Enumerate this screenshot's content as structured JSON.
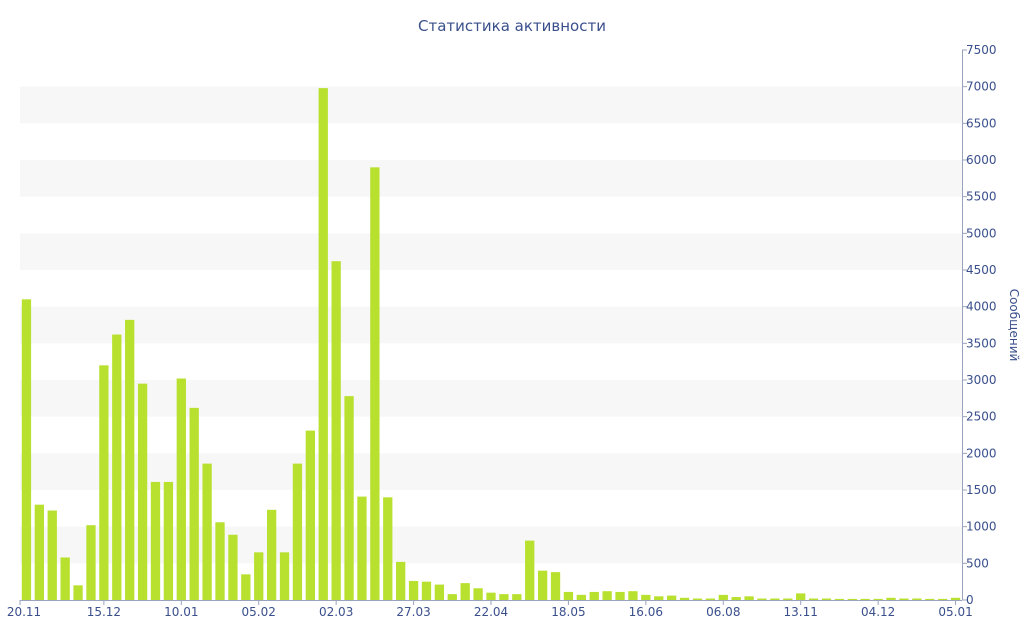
{
  "chart_data": {
    "type": "bar",
    "title": "Статистика активности",
    "ylabel": "Сообщений",
    "xlabel": "",
    "ylim": [
      0,
      7500
    ],
    "y_ticks": [
      0,
      500,
      1000,
      1500,
      2000,
      2500,
      3000,
      3500,
      4000,
      4500,
      5000,
      5500,
      6000,
      6500,
      7000,
      7500
    ],
    "y_axis_position": "right",
    "grid": "alternating horizontal bands",
    "legend": "none",
    "bar_color": "#b8e02e",
    "band_color": "#f7f7f7",
    "text_color": "#3a4f8c",
    "x_tick_labels": [
      {
        "index": 0,
        "label": "20.11"
      },
      {
        "index": 6,
        "label": "15.12"
      },
      {
        "index": 12,
        "label": "10.01"
      },
      {
        "index": 18,
        "label": "05.02"
      },
      {
        "index": 24,
        "label": "02.03"
      },
      {
        "index": 30,
        "label": "27.03"
      },
      {
        "index": 36,
        "label": "22.04"
      },
      {
        "index": 42,
        "label": "18.05"
      },
      {
        "index": 48,
        "label": "16.06"
      },
      {
        "index": 54,
        "label": "06.08"
      },
      {
        "index": 60,
        "label": "13.11"
      },
      {
        "index": 66,
        "label": "04.12"
      },
      {
        "index": 72,
        "label": "05.01"
      }
    ],
    "values": [
      4100,
      1300,
      1220,
      580,
      200,
      1020,
      3200,
      3620,
      3820,
      2950,
      1610,
      1610,
      3020,
      2620,
      1860,
      1060,
      890,
      350,
      650,
      1230,
      650,
      1860,
      2310,
      6980,
      4620,
      2780,
      1410,
      5900,
      1400,
      520,
      260,
      250,
      210,
      80,
      230,
      160,
      100,
      80,
      80,
      810,
      400,
      380,
      110,
      70,
      110,
      120,
      110,
      120,
      70,
      50,
      60,
      30,
      20,
      20,
      70,
      40,
      50,
      20,
      20,
      20,
      90,
      20,
      20,
      15,
      15,
      15,
      15,
      30,
      20,
      20,
      15,
      15,
      30
    ]
  }
}
